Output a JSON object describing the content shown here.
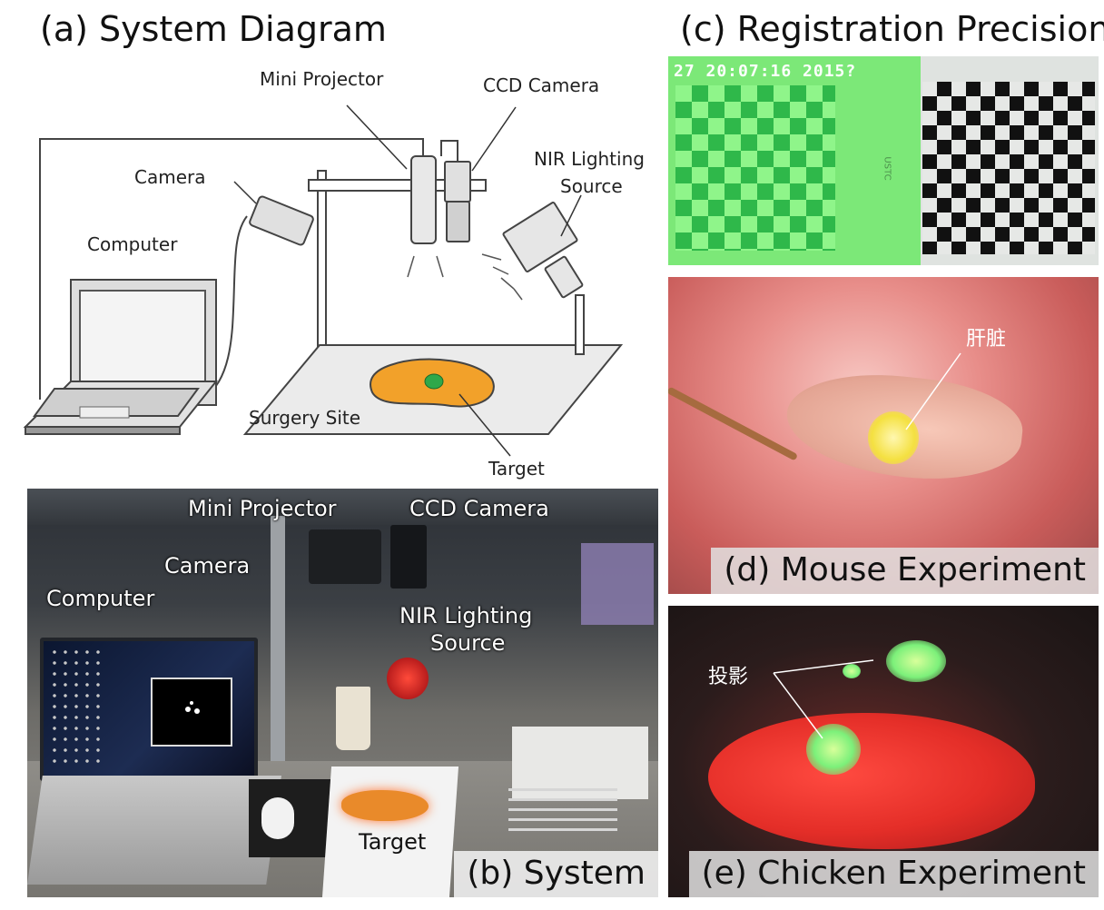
{
  "panels": {
    "a": {
      "title": "(a) System Diagram",
      "labels": {
        "mini_projector": "Mini Projector",
        "ccd_camera": "CCD Camera",
        "camera": "Camera",
        "nir_line1": "NIR Lighting",
        "nir_line2": "Source",
        "computer": "Computer",
        "surgery_site": "Surgery Site",
        "target": "Target"
      }
    },
    "b": {
      "caption": "(b) System",
      "labels": {
        "mini_projector": "Mini Projector",
        "ccd_camera": "CCD Camera",
        "camera": "Camera",
        "computer": "Computer",
        "nir_line1": "NIR Lighting",
        "nir_line2": "Source",
        "target": "Target"
      }
    },
    "c": {
      "title": "(c) Registration Precision",
      "timestamp": "27 20:07:16 2015?",
      "board_text": "USTC"
    },
    "d": {
      "caption": "(d) Mouse Experiment",
      "label": "肝脏"
    },
    "e": {
      "caption": "(e) Chicken Experiment",
      "label": "投影"
    }
  },
  "colors": {
    "projection_green": "#7cf07a",
    "target_orange": "#f2a12a",
    "nir_red": "#e8352f"
  }
}
